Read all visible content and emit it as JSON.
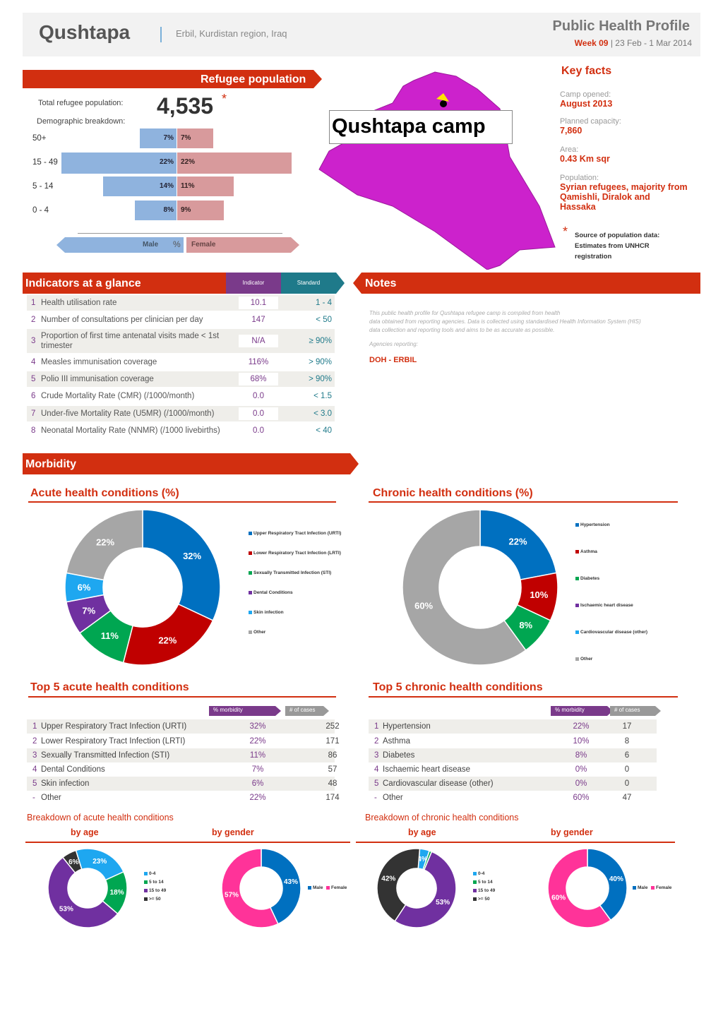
{
  "header": {
    "camp_name": "Qushtapa",
    "location": "Erbil, Kurdistan region, Iraq",
    "profile_title": "Public Health Profile",
    "week_label": "Week 09",
    "date_range": "| 23 Feb - 1 Mar 2014"
  },
  "refugee_population": {
    "title": "Refugee population",
    "total_label": "Total refugee population:",
    "total_value": "4,535",
    "asterisk": "*",
    "demographic_label": "Demographic breakdown:",
    "age_groups": [
      {
        "label": "50+",
        "male": 7,
        "female": 7,
        "male_text": "7%",
        "female_text": "7%"
      },
      {
        "label": "15 - 49",
        "male": 22,
        "female": 22,
        "male_text": "22%",
        "female_text": "22%"
      },
      {
        "label": "5 - 14",
        "male": 14,
        "female": 11,
        "male_text": "14%",
        "female_text": "11%"
      },
      {
        "label": "0 - 4",
        "male": 8,
        "female": 9,
        "male_text": "8%",
        "female_text": "9%"
      }
    ],
    "male_label": "Male",
    "pct_label": "%",
    "female_label": "Female"
  },
  "map": {
    "label": "Qushtapa camp"
  },
  "key_facts": {
    "title": "Key facts",
    "items": [
      {
        "label": "Camp opened:",
        "value": "August 2013"
      },
      {
        "label": "Planned capacity:",
        "value": "7,860"
      },
      {
        "label": "Area:",
        "value": "0.43 Km sqr"
      },
      {
        "label": "Population:",
        "value": "Syrian refugees, majority from Qamishli, Diralok and Hassaka"
      }
    ],
    "source_asterisk": "*",
    "source_line1": "Source of population data:",
    "source_line2": "Estimates from UNHCR",
    "source_line3": "registration"
  },
  "indicators": {
    "title": "Indicators at a glance",
    "col_indicator": "Indicator",
    "col_standard": "Standard",
    "rows": [
      {
        "num": "1",
        "label": "Health utilisation rate",
        "value": "10.1",
        "standard": "1 - 4"
      },
      {
        "num": "2",
        "label": "Number of consultations per clinician per day",
        "value": "147",
        "standard": "< 50"
      },
      {
        "num": "3",
        "label": "Proportion of first time antenatal visits made < 1st",
        "label2": "trimester",
        "value": "N/A",
        "standard": "≥ 90%"
      },
      {
        "num": "4",
        "label": "Measles immunisation coverage",
        "value": "116%",
        "standard": "> 90%"
      },
      {
        "num": "5",
        "label": "Polio III immunisation coverage",
        "value": "68%",
        "standard": "> 90%"
      },
      {
        "num": "6",
        "label": "Crude Mortality Rate (CMR) (/1000/month)",
        "value": "0.0",
        "standard": "< 1.5"
      },
      {
        "num": "7",
        "label": "Under-five Mortality Rate (U5MR) (/1000/month)",
        "value": "0.0",
        "standard": "< 3.0"
      },
      {
        "num": "8",
        "label": "Neonatal Mortality Rate (NNMR) (/1000 livebirths)",
        "value": "0.0",
        "standard": "< 40"
      }
    ]
  },
  "notes": {
    "title": "Notes",
    "text1": "This public health profile for Qushtapa refugee camp is compiled from health",
    "text2": "data obtained from reporting agencies. Data is collected using standardised Health Information System (HIS)",
    "text3": "data collection and reporting tools and aims to be as accurate as possible.",
    "agencies_label": "Agencies reporting:",
    "agencies": "DOH - ERBIL"
  },
  "morbidity": {
    "title": "Morbidity",
    "acute_title": "Acute health conditions (%)",
    "chronic_title": "Chronic health conditions (%)",
    "top5_acute_title": "Top 5 acute health conditions",
    "top5_chronic_title": "Top 5 chronic health conditions",
    "col_morbidity": "% morbidity",
    "col_cases": "# of cases",
    "acute_rows": [
      {
        "num": "1",
        "label": "Upper Respiratory Tract Infection (URTI)",
        "pct": "32%",
        "cases": "252"
      },
      {
        "num": "2",
        "label": "Lower Respiratory Tract Infection (LRTI)",
        "pct": "22%",
        "cases": "171"
      },
      {
        "num": "3",
        "label": "Sexually Transmitted Infection (STI)",
        "pct": "11%",
        "cases": "86"
      },
      {
        "num": "4",
        "label": "Dental Conditions",
        "pct": "7%",
        "cases": "57"
      },
      {
        "num": "5",
        "label": "Skin infection",
        "pct": "6%",
        "cases": "48"
      },
      {
        "num": "-",
        "label": "Other",
        "pct": "22%",
        "cases": "174"
      }
    ],
    "chronic_rows": [
      {
        "num": "1",
        "label": "Hypertension",
        "pct": "22%",
        "cases": "17"
      },
      {
        "num": "2",
        "label": "Asthma",
        "pct": "10%",
        "cases": "8"
      },
      {
        "num": "3",
        "label": "Diabetes",
        "pct": "8%",
        "cases": "6"
      },
      {
        "num": "4",
        "label": "Ischaemic heart disease",
        "pct": "0%",
        "cases": "0"
      },
      {
        "num": "5",
        "label": "Cardiovascular disease (other)",
        "pct": "0%",
        "cases": "0"
      },
      {
        "num": "-",
        "label": "Other",
        "pct": "60%",
        "cases": "47"
      }
    ],
    "acute_breakdown_title": "Breakdown of acute health conditions",
    "chronic_breakdown_title": "Breakdown of chronic health conditions",
    "by_age": "by age",
    "by_gender": "by gender"
  },
  "chart_data": [
    {
      "type": "pie",
      "title": "Acute health conditions (%)",
      "categories": [
        "Upper Respiratory Tract Infection (URTI)",
        "Lower Respiratory Tract Infection (LRTI)",
        "Sexually Transmitted Infection (STI)",
        "Dental Conditions",
        "Skin infection",
        "Other"
      ],
      "values": [
        32,
        22,
        11,
        7,
        6,
        22
      ],
      "labels": [
        "32%",
        "22%",
        "11%",
        "7%",
        "6%",
        "22%"
      ],
      "colors": [
        "#0070c0",
        "#c00000",
        "#00a651",
        "#7030a0",
        "#1ea7f0",
        "#a6a6a6"
      ]
    },
    {
      "type": "pie",
      "title": "Chronic health conditions (%)",
      "categories": [
        "Hypertension",
        "Asthma",
        "Diabetes",
        "Ischaemic heart disease",
        "Cardiovascular disease (other)",
        "Other"
      ],
      "values": [
        22,
        10,
        8,
        0,
        0,
        60
      ],
      "labels": [
        "22%",
        "10%",
        "8%",
        "0%",
        "0%",
        "60%"
      ],
      "colors": [
        "#0070c0",
        "#c00000",
        "#00a651",
        "#7030a0",
        "#1ea7f0",
        "#a6a6a6"
      ]
    },
    {
      "type": "pie",
      "title": "by age",
      "categories": [
        "0-4",
        "5 to 14",
        "15 to 49",
        ">= 50"
      ],
      "values": [
        23,
        18,
        53,
        6
      ],
      "labels": [
        "23%",
        "18%",
        "53%",
        "6%"
      ],
      "colors": [
        "#1ea7f0",
        "#00a651",
        "#7030a0",
        "#333333"
      ]
    },
    {
      "type": "pie",
      "title": "by gender",
      "categories": [
        "Male",
        "Female"
      ],
      "values": [
        43,
        57
      ],
      "labels": [
        "43%",
        "57%"
      ],
      "colors": [
        "#0070c0",
        "#ff3399"
      ]
    },
    {
      "type": "pie",
      "title": "by age",
      "categories": [
        "0-4",
        "5 to 14",
        "15 to 49",
        ">= 50"
      ],
      "values": [
        4,
        1,
        53,
        42
      ],
      "labels": [
        "4%",
        "",
        "53%",
        "42%"
      ],
      "colors": [
        "#1ea7f0",
        "#00a651",
        "#7030a0",
        "#333333"
      ]
    },
    {
      "type": "pie",
      "title": "by gender",
      "categories": [
        "Male",
        "Female"
      ],
      "values": [
        40,
        60
      ],
      "labels": [
        "40%",
        "60%"
      ],
      "colors": [
        "#0070c0",
        "#ff3399"
      ]
    }
  ]
}
